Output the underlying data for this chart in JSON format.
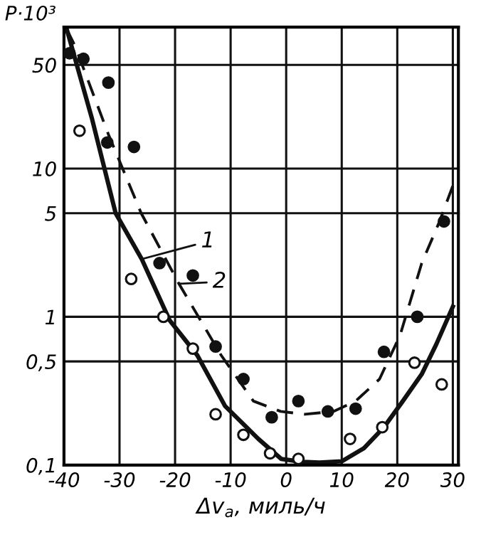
{
  "chart_data": {
    "type": "scatter",
    "xlabel": "Δv$_{a}$, миль/ч",
    "ylabel": "P·10³",
    "log": "y",
    "xlim": [
      -40,
      31
    ],
    "ylim": [
      0.1,
      90
    ],
    "xticks": [
      -40,
      -30,
      -20,
      -10,
      0,
      10,
      20,
      30
    ],
    "yticks": [
      {
        "value": 0.1,
        "label": "0,1"
      },
      {
        "value": 0.5,
        "label": "0,5"
      },
      1,
      5,
      10,
      50
    ],
    "grid": true,
    "legend": false,
    "tick_labels": true,
    "series": [
      {
        "marker": "circle",
        "color": "#111111",
        "x": [
          -39,
          -36.5,
          -32,
          -32.2,
          -27.4,
          -22.8,
          -16.8,
          -12.7,
          -7.7,
          -2.6,
          2.2,
          7.5,
          12.5,
          17.6,
          23.6,
          28.4
        ],
        "values": [
          60,
          55,
          38,
          15,
          14,
          2.3,
          1.9,
          0.63,
          0.38,
          0.21,
          0.27,
          0.23,
          0.24,
          0.58,
          1.0,
          4.4
        ]
      },
      {
        "marker": "circle",
        "color": "#ffffff",
        "x": [
          -37.2,
          -27.9,
          -22.1,
          -16.8,
          -12.7,
          -7.7,
          -2.9,
          2.2,
          11.5,
          17.3,
          23.1,
          28
        ],
        "values": [
          18,
          1.8,
          1.0,
          0.61,
          0.22,
          0.16,
          0.12,
          0.11,
          0.15,
          0.18,
          0.49,
          0.35
        ]
      },
      {
        "type": "line",
        "line_style": "solid",
        "color": "#111111",
        "x": [
          -39.5,
          -35,
          -30.7,
          -26,
          -21,
          -16,
          -11,
          -5,
          -0.9,
          3,
          6,
          10,
          14,
          17.6,
          21,
          24.4,
          27,
          30
        ],
        "values": [
          87,
          22,
          5,
          2.45,
          0.95,
          0.55,
          0.25,
          0.15,
          0.11,
          0.105,
          0.104,
          0.106,
          0.13,
          0.18,
          0.27,
          0.41,
          0.65,
          1.17
        ]
      },
      {
        "type": "line",
        "line_style": "dashed",
        "color": "#111111",
        "x": [
          -39.5,
          -38,
          -32,
          -26.1,
          -19.3,
          -11.7,
          -5.9,
          -1,
          3.4,
          8.5,
          12.5,
          16.8,
          20.5,
          24.4,
          27.5,
          30.2
        ],
        "values": [
          87,
          67,
          17,
          5,
          1.67,
          0.55,
          0.27,
          0.23,
          0.22,
          0.23,
          0.27,
          0.38,
          0.75,
          2.3,
          4.3,
          8.0
        ]
      }
    ],
    "annotations": [
      {
        "text": "1",
        "x": -26,
        "y": 2.45
      },
      {
        "text": "2",
        "x": -19.3,
        "y": 1.67
      }
    ]
  }
}
